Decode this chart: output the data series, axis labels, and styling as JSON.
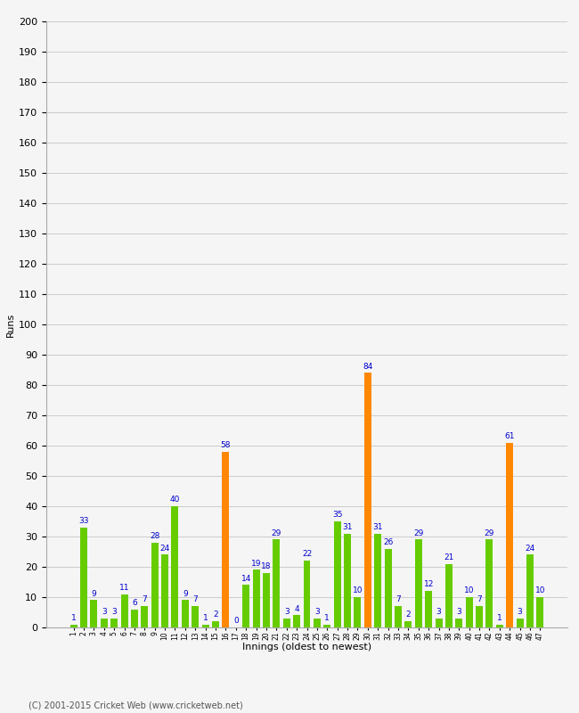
{
  "xlabel": "Innings (oldest to newest)",
  "ylabel": "Runs",
  "ylim": [
    0,
    200
  ],
  "yticks": [
    0,
    10,
    20,
    30,
    40,
    50,
    60,
    70,
    80,
    90,
    100,
    110,
    120,
    130,
    140,
    150,
    160,
    170,
    180,
    190,
    200
  ],
  "innings": [
    1,
    2,
    3,
    4,
    5,
    6,
    7,
    8,
    9,
    10,
    11,
    12,
    13,
    14,
    15,
    16,
    17,
    18,
    19,
    20,
    21,
    22,
    23,
    24,
    25,
    26,
    27,
    28,
    29,
    30,
    31,
    32,
    33,
    34,
    35,
    36,
    37,
    38,
    39,
    40,
    41,
    42,
    43,
    44,
    45,
    46,
    47
  ],
  "values": [
    1,
    33,
    9,
    3,
    3,
    11,
    6,
    7,
    28,
    24,
    40,
    9,
    7,
    1,
    2,
    58,
    0,
    14,
    19,
    18,
    29,
    3,
    4,
    22,
    3,
    1,
    35,
    31,
    10,
    84,
    31,
    26,
    7,
    2,
    29,
    12,
    3,
    21,
    3,
    10,
    7,
    29,
    1,
    61,
    3,
    24,
    10
  ],
  "orange_indices": [
    15,
    29,
    43
  ],
  "bar_color_green": "#66cc00",
  "bar_color_orange": "#ff8800",
  "label_color": "#0000cc",
  "label_fontsize": 6.5,
  "axis_label_fontsize": 8,
  "tick_fontsize": 7,
  "background_color": "#f5f5f5",
  "grid_color": "#cccccc",
  "footer": "(C) 2001-2015 Cricket Web (www.cricketweb.net)"
}
